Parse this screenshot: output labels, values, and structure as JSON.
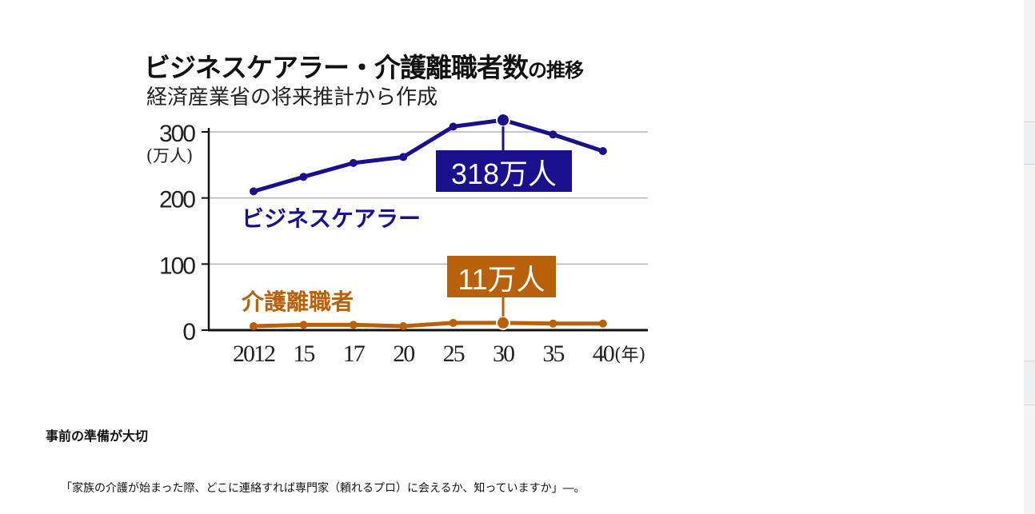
{
  "chart_data": {
    "type": "line",
    "title": "ビジネスケアラー・介護離職者数",
    "title_suffix": "の推移",
    "subtitle": "経済産業省の将来推計から作成",
    "ylabel": "(万人)",
    "xlabel_suffix": "(年)",
    "ylim": [
      0,
      300
    ],
    "yticks": [
      "0",
      "100",
      "200",
      "300"
    ],
    "ytick_values": [
      0,
      100,
      200,
      300
    ],
    "categories": [
      "2012",
      "15",
      "17",
      "20",
      "25",
      "30",
      "35",
      "40"
    ],
    "grid": true,
    "series": [
      {
        "name": "ビジネスケアラー",
        "color": "#1a0f8c",
        "values": [
          210,
          232,
          253,
          262,
          308,
          318,
          296,
          271
        ],
        "callout": "318万人",
        "callout_index": 5
      },
      {
        "name": "介護離職者",
        "color": "#b8600a",
        "values": [
          6,
          8,
          8,
          6,
          11,
          11,
          10,
          10
        ],
        "callout": "11万人",
        "callout_index": 5
      }
    ]
  },
  "article": {
    "heading": "事前の準備が大切",
    "paragraph": "「家族の介護が始まった際、どこに連絡すれば専門家（頼れるプロ）に会えるか、知っていますか」―。"
  }
}
